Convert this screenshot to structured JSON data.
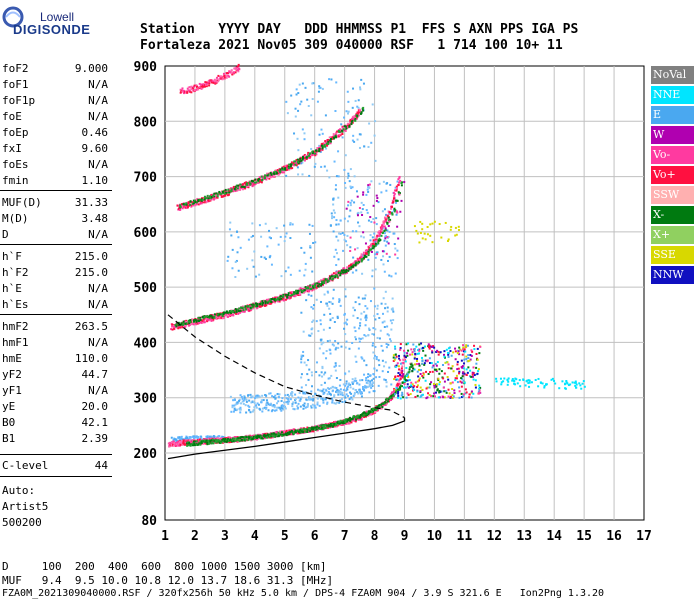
{
  "logo": {
    "line1": "Lowell",
    "line2": "DIGISONDE"
  },
  "header": {
    "row1": "Station   YYYY DAY   DDD HHMMSS P1  FFS S AXN PPS IGA PS",
    "row2": "Fortaleza 2021 Nov05 309 040000 RSF   1 714 100 10+ 11"
  },
  "params": [
    {
      "name": "foF2",
      "value": "9.000"
    },
    {
      "name": "foF1",
      "value": "N/A"
    },
    {
      "name": "foF1p",
      "value": "N/A"
    },
    {
      "name": "foE",
      "value": "N/A"
    },
    {
      "name": "foEp",
      "value": "0.46"
    },
    {
      "name": "fxI",
      "value": "9.60"
    },
    {
      "name": "foEs",
      "value": "N/A"
    },
    {
      "name": "fmin",
      "value": "1.10"
    },
    {
      "name": "MUF(D)",
      "value": "31.33"
    },
    {
      "name": "M(D)",
      "value": "3.48"
    },
    {
      "name": "D",
      "value": "N/A"
    },
    {
      "name": "h`F",
      "value": "215.0"
    },
    {
      "name": "h`F2",
      "value": "215.0"
    },
    {
      "name": "h`E",
      "value": "N/A"
    },
    {
      "name": "h`Es",
      "value": "N/A"
    },
    {
      "name": "hmF2",
      "value": "263.5"
    },
    {
      "name": "hmF1",
      "value": "N/A"
    },
    {
      "name": "hmE",
      "value": "110.0"
    },
    {
      "name": "yF2",
      "value": "44.7"
    },
    {
      "name": "yF1",
      "value": "N/A"
    },
    {
      "name": "yE",
      "value": "20.0"
    },
    {
      "name": "B0",
      "value": "42.1"
    },
    {
      "name": "B1",
      "value": "2.39"
    },
    {
      "name": "C-level",
      "value": "44"
    }
  ],
  "autoscaling": {
    "line1": "Auto:",
    "line2": "Artist5",
    "line3": "500200"
  },
  "legend": [
    {
      "label": "NoVal",
      "bg": "#808080",
      "fg": "#ffffff"
    },
    {
      "label": "NNE",
      "bg": "#00e5ff",
      "fg": "#ffffff"
    },
    {
      "label": "E",
      "bg": "#4aa8f0",
      "fg": "#ffffff"
    },
    {
      "label": "W",
      "bg": "#b000b0",
      "fg": "#ffffff"
    },
    {
      "label": "Vo-",
      "bg": "#ff3aa0",
      "fg": "#ffffff"
    },
    {
      "label": "Vo+",
      "bg": "#ff1040",
      "fg": "#ffffff"
    },
    {
      "label": "SSW",
      "bg": "#ffb0b0",
      "fg": "#ffffff"
    },
    {
      "label": "X-",
      "bg": "#007a10",
      "fg": "#ffffff"
    },
    {
      "label": "X+",
      "bg": "#90d060",
      "fg": "#ffffff"
    },
    {
      "label": "SSE",
      "bg": "#d8d800",
      "fg": "#ffffff"
    },
    {
      "label": "NNW",
      "bg": "#1010c0",
      "fg": "#ffffff"
    }
  ],
  "footer": {
    "line1": "D     100  200  400  600  800 1000 1500 3000 [km]",
    "line2": "MUF   9.4  9.5 10.0 10.8 12.0 13.7 18.6 31.3 [MHz]",
    "line3": "FZA0M_2021309040000.RSF / 320fx256h 50 kHz 5.0 km / DPS-4 FZA0M 904 / 3.9 S 321.6 E   Ion2Png 1.3.20"
  },
  "chart_data": {
    "type": "scatter",
    "title": "",
    "xlabel": "",
    "ylabel": "",
    "xlim": [
      1,
      17
    ],
    "ylim": [
      80,
      900
    ],
    "x_ticks": [
      "1",
      "2",
      "3",
      "4",
      "5",
      "6",
      "7",
      "8",
      "9",
      "10",
      "11",
      "12",
      "13",
      "14",
      "15",
      "16",
      "17"
    ],
    "y_ticks": [
      "80",
      "200",
      "300",
      "400",
      "500",
      "600",
      "700",
      "800",
      "900"
    ],
    "y_tick_values": [
      80,
      200,
      300,
      400,
      500,
      600,
      700,
      800,
      900
    ],
    "grid": true,
    "traces": {
      "o_trace_1hop": [
        [
          1.1,
          218
        ],
        [
          2,
          222
        ],
        [
          3,
          225
        ],
        [
          4,
          230
        ],
        [
          5,
          238
        ],
        [
          6,
          246
        ],
        [
          7,
          258
        ],
        [
          7.5,
          266
        ],
        [
          8,
          280
        ],
        [
          8.5,
          300
        ],
        [
          8.8,
          330
        ],
        [
          9.0,
          380
        ]
      ],
      "x_trace_1hop": [
        [
          1.7,
          218
        ],
        [
          2.5,
          222
        ],
        [
          3.5,
          227
        ],
        [
          4.5,
          233
        ],
        [
          5.5,
          241
        ],
        [
          6.5,
          252
        ],
        [
          7.5,
          268
        ],
        [
          8.2,
          288
        ],
        [
          8.8,
          318
        ],
        [
          9.2,
          360
        ]
      ],
      "o_trace_2hop": [
        [
          1.2,
          430
        ],
        [
          2,
          440
        ],
        [
          3,
          452
        ],
        [
          4,
          468
        ],
        [
          5,
          484
        ],
        [
          6,
          504
        ],
        [
          7,
          532
        ],
        [
          7.5,
          552
        ],
        [
          8,
          585
        ],
        [
          8.5,
          640
        ],
        [
          8.8,
          700
        ]
      ],
      "o_trace_3hop": [
        [
          1.4,
          645
        ],
        [
          2,
          655
        ],
        [
          3,
          672
        ],
        [
          4,
          692
        ],
        [
          5,
          716
        ],
        [
          6,
          746
        ],
        [
          7,
          790
        ],
        [
          7.5,
          820
        ]
      ],
      "o_trace_4hop": [
        [
          1.5,
          855
        ],
        [
          2,
          862
        ],
        [
          2.5,
          872
        ],
        [
          3,
          884
        ],
        [
          3.5,
          900
        ]
      ],
      "spread_E": [
        [
          3.2,
          290
        ],
        [
          4,
          292
        ],
        [
          5,
          295
        ],
        [
          6,
          300
        ],
        [
          7,
          310
        ],
        [
          8,
          330
        ]
      ],
      "es_layer": [
        [
          1.2,
          225
        ],
        [
          2,
          227
        ],
        [
          3,
          228
        ]
      ]
    },
    "profile_solid": [
      [
        1.1,
        190
      ],
      [
        2,
        198
      ],
      [
        3,
        205
      ],
      [
        4,
        212
      ],
      [
        5,
        220
      ],
      [
        6,
        228
      ],
      [
        7,
        236
      ],
      [
        8,
        244
      ],
      [
        8.6,
        250
      ],
      [
        9,
        258
      ],
      [
        9.0,
        264
      ]
    ],
    "profile_dashed": [
      [
        1.1,
        450
      ],
      [
        2,
        410
      ],
      [
        3,
        375
      ],
      [
        4,
        345
      ],
      [
        5,
        320
      ],
      [
        6,
        305
      ],
      [
        7,
        292
      ],
      [
        8,
        282
      ],
      [
        8.5,
        278
      ],
      [
        9,
        264
      ]
    ],
    "spread_F_cluster": {
      "x_range": [
        8.6,
        11.5
      ],
      "y_range": [
        300,
        400
      ],
      "extra": [
        [
          12.5,
          330
        ],
        [
          13.5,
          328
        ],
        [
          14.5,
          325
        ]
      ]
    }
  }
}
